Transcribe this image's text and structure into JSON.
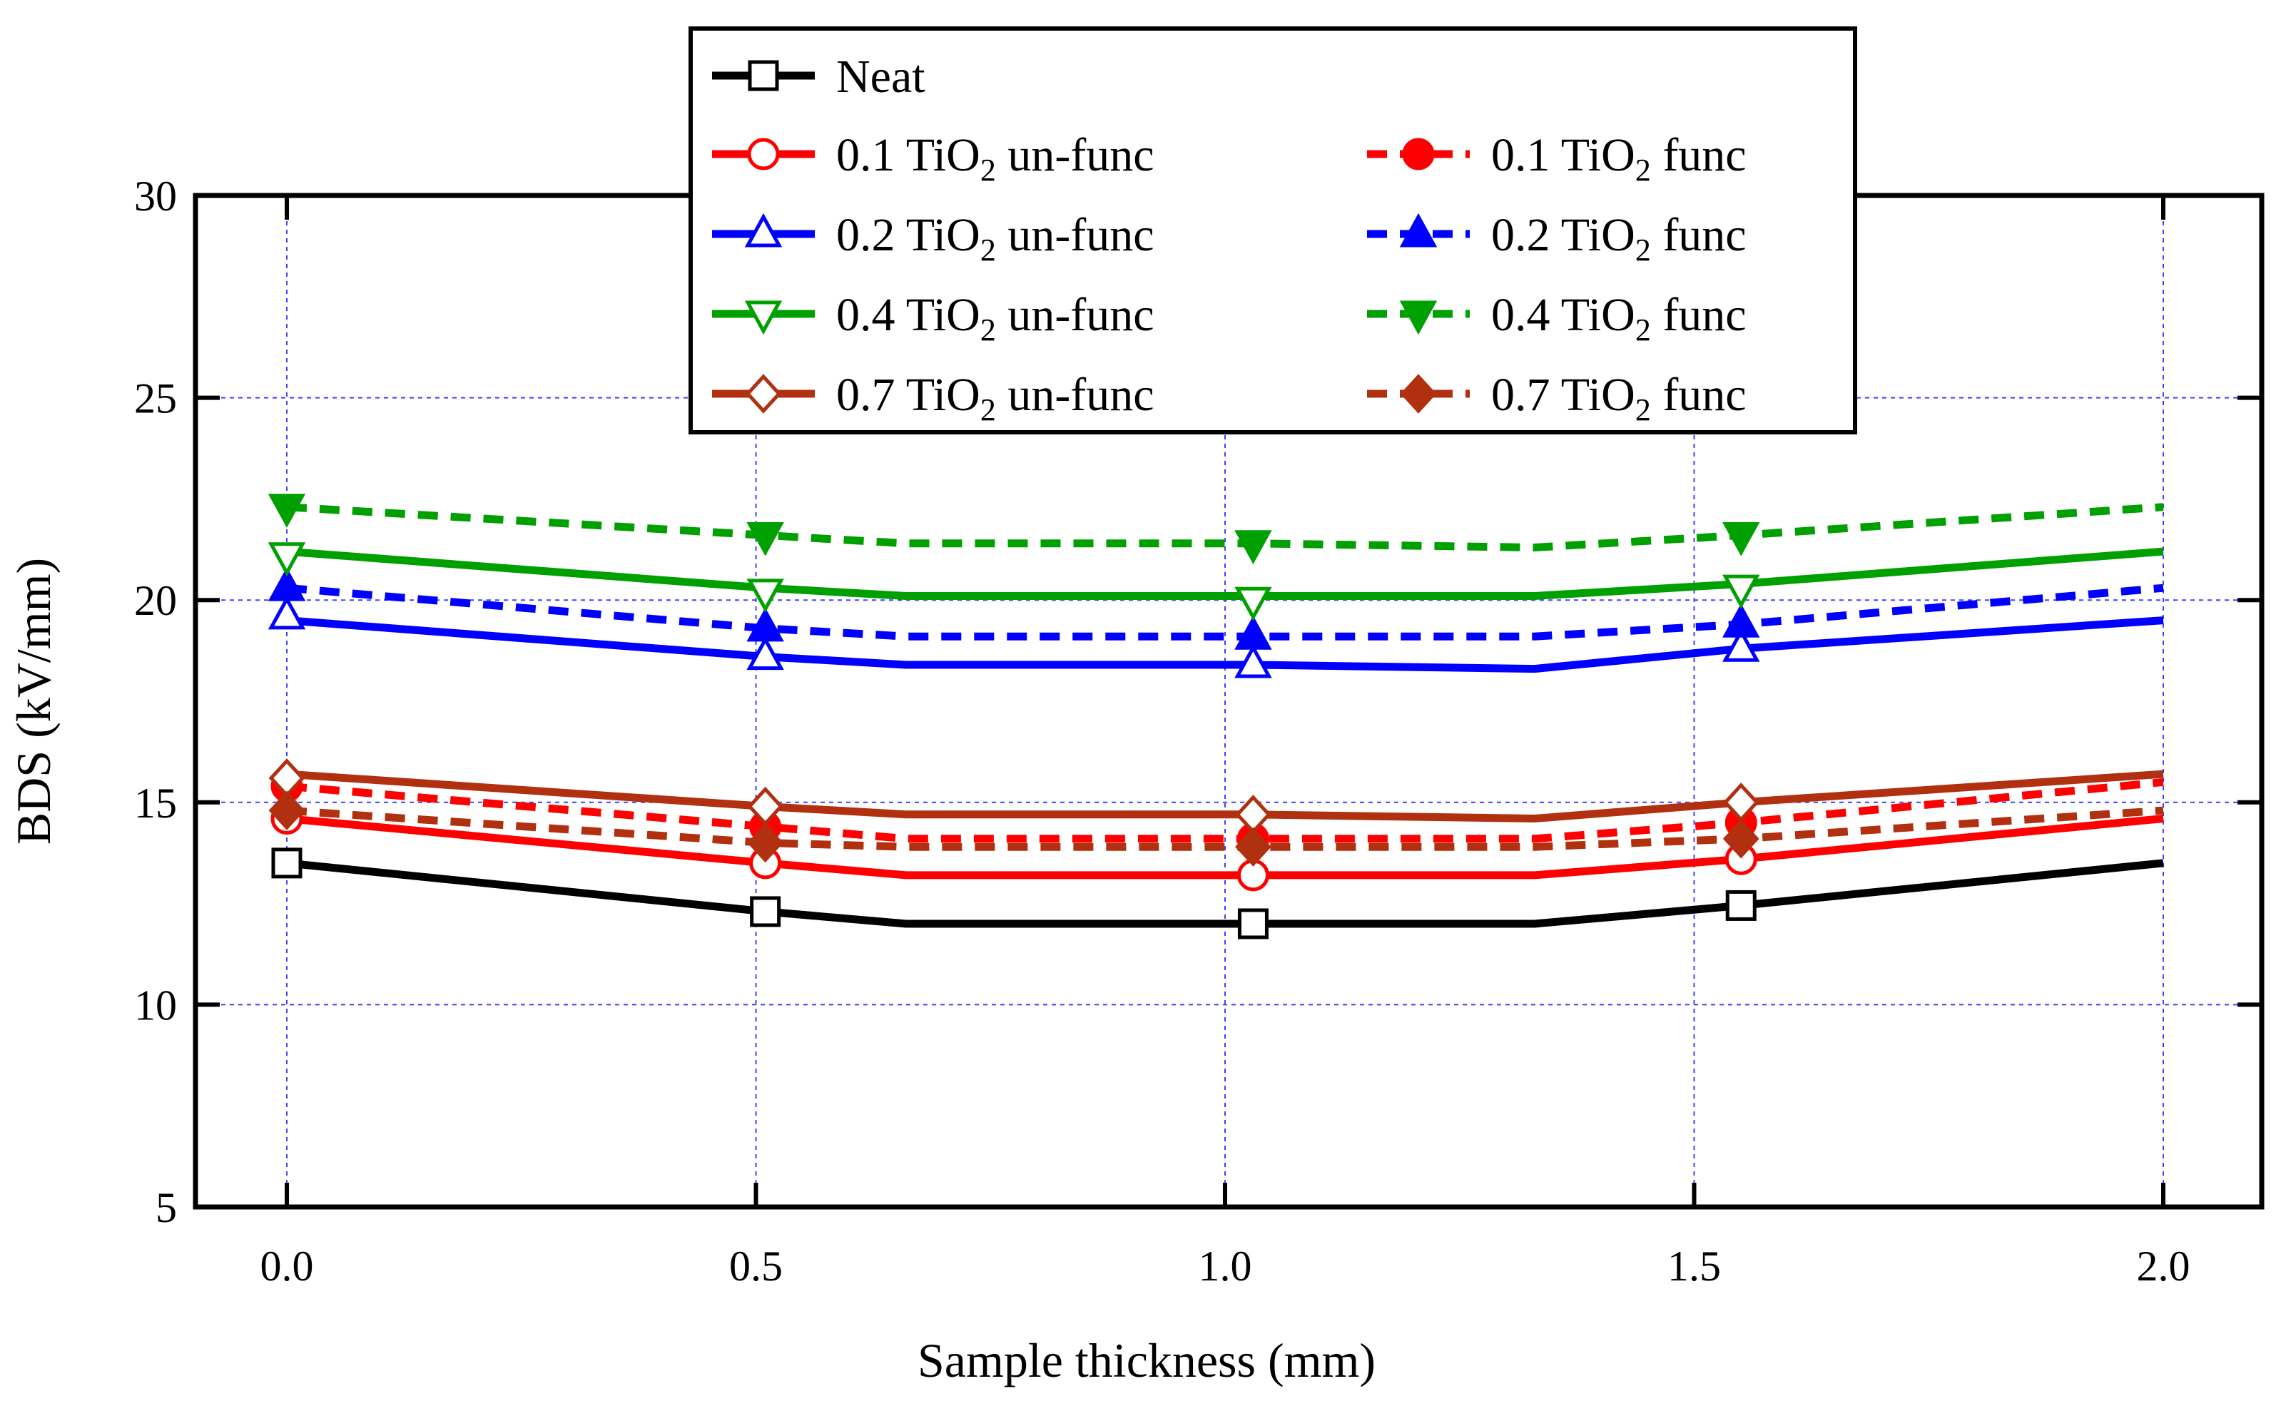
{
  "chart_data": {
    "type": "line",
    "title": "",
    "xlabel": "Sample thickness (mm)",
    "ylabel": "BDS (kV/mm)",
    "xlim": [
      -0.1,
      2.1
    ],
    "ylim": [
      5,
      30
    ],
    "xticks": [
      "0.0",
      "0.5",
      "1.0",
      "1.5",
      "2.0"
    ],
    "yticks": [
      "5",
      "10",
      "15",
      "20",
      "25",
      "30"
    ],
    "grid": true,
    "legend_position": "top-center",
    "markers_x": [
      0.0,
      0.51,
      1.03,
      1.55
    ],
    "series": [
      {
        "name": "Neat",
        "legend_main": "Neat",
        "legend_sub": "",
        "legend_tail": "",
        "color": "#000000",
        "dash": "solid",
        "marker": "square",
        "filled": false,
        "x": [
          0.0,
          0.51,
          0.66,
          1.03,
          1.33,
          1.55,
          2.0
        ],
        "y": [
          13.5,
          12.3,
          12.0,
          12.0,
          12.0,
          12.45,
          13.5
        ],
        "mx": [
          0.0,
          0.51,
          1.03,
          1.55
        ],
        "my": [
          13.5,
          12.3,
          12.0,
          12.45
        ]
      },
      {
        "name": "0.1 TiO2 un-func",
        "legend_main": "0.1 TiO",
        "legend_sub": "2",
        "legend_tail": " un-func",
        "color": "#ff0000",
        "dash": "solid",
        "marker": "circle",
        "filled": false,
        "x": [
          0.0,
          0.51,
          0.66,
          1.03,
          1.33,
          1.55,
          2.0
        ],
        "y": [
          14.6,
          13.5,
          13.2,
          13.2,
          13.2,
          13.6,
          14.6
        ],
        "mx": [
          0.0,
          0.51,
          1.03,
          1.55
        ],
        "my": [
          14.6,
          13.5,
          13.2,
          13.6
        ]
      },
      {
        "name": "0.1 TiO2 func",
        "legend_main": "0.1 TiO",
        "legend_sub": "2",
        "legend_tail": " func",
        "color": "#ff0000",
        "dash": "dashed",
        "marker": "circle",
        "filled": true,
        "x": [
          0.0,
          0.51,
          0.66,
          1.03,
          1.33,
          1.55,
          2.0
        ],
        "y": [
          15.4,
          14.4,
          14.1,
          14.1,
          14.1,
          14.5,
          15.5
        ],
        "mx": [
          0.0,
          0.51,
          1.03,
          1.55
        ],
        "my": [
          15.4,
          14.4,
          14.1,
          14.5
        ]
      },
      {
        "name": "0.2 TiO2 un-func",
        "legend_main": "0.2 TiO",
        "legend_sub": "2",
        "legend_tail": " un-func",
        "color": "#0000ff",
        "dash": "solid",
        "marker": "triangle-up",
        "filled": false,
        "x": [
          0.0,
          0.51,
          0.66,
          1.03,
          1.33,
          1.55,
          2.0
        ],
        "y": [
          19.5,
          18.6,
          18.4,
          18.4,
          18.3,
          18.8,
          19.5
        ],
        "mx": [
          0.0,
          0.51,
          1.03,
          1.55
        ],
        "my": [
          19.6,
          18.6,
          18.4,
          18.8
        ]
      },
      {
        "name": "0.2 TiO2 func",
        "legend_main": "0.2 TiO",
        "legend_sub": "2",
        "legend_tail": " func",
        "color": "#0000ff",
        "dash": "dashed",
        "marker": "triangle-up",
        "filled": true,
        "x": [
          0.0,
          0.51,
          0.66,
          1.03,
          1.33,
          1.55,
          2.0
        ],
        "y": [
          20.3,
          19.3,
          19.1,
          19.1,
          19.1,
          19.4,
          20.3
        ],
        "mx": [
          0.0,
          0.51,
          1.03,
          1.55
        ],
        "my": [
          20.3,
          19.3,
          19.1,
          19.4
        ]
      },
      {
        "name": "0.4 TiO2 un-func",
        "legend_main": "0.4 TiO",
        "legend_sub": "2",
        "legend_tail": " un-func",
        "color": "#00a000",
        "dash": "solid",
        "marker": "triangle-down",
        "filled": false,
        "x": [
          0.0,
          0.51,
          0.66,
          1.03,
          1.33,
          1.55,
          2.0
        ],
        "y": [
          21.2,
          20.3,
          20.1,
          20.1,
          20.1,
          20.4,
          21.2
        ],
        "mx": [
          0.0,
          0.51,
          1.03,
          1.55
        ],
        "my": [
          21.1,
          20.2,
          20.0,
          20.3
        ]
      },
      {
        "name": "0.4 TiO2 func",
        "legend_main": "0.4 TiO",
        "legend_sub": "2",
        "legend_tail": " func",
        "color": "#00a000",
        "dash": "dashed",
        "marker": "triangle-down",
        "filled": true,
        "x": [
          0.0,
          0.51,
          0.66,
          1.03,
          1.33,
          1.55,
          2.0
        ],
        "y": [
          22.3,
          21.6,
          21.4,
          21.4,
          21.3,
          21.6,
          22.3
        ],
        "mx": [
          0.0,
          0.51,
          1.03,
          1.55
        ],
        "my": [
          22.3,
          21.6,
          21.4,
          21.6
        ]
      },
      {
        "name": "0.7 TiO2 un-func",
        "legend_main": "0.7 TiO",
        "legend_sub": "2",
        "legend_tail": " un-func",
        "color": "#b03010",
        "dash": "solid",
        "marker": "diamond",
        "filled": false,
        "x": [
          0.0,
          0.51,
          0.66,
          1.03,
          1.33,
          1.55,
          2.0
        ],
        "y": [
          15.7,
          14.9,
          14.7,
          14.7,
          14.6,
          15.0,
          15.7
        ],
        "mx": [
          0.0,
          0.51,
          1.03,
          1.55
        ],
        "my": [
          15.6,
          14.9,
          14.7,
          15.0
        ]
      },
      {
        "name": "0.7 TiO2 func",
        "legend_main": "0.7 TiO",
        "legend_sub": "2",
        "legend_tail": " func",
        "color": "#b03010",
        "dash": "dashed",
        "marker": "diamond",
        "filled": true,
        "x": [
          0.0,
          0.51,
          0.66,
          1.03,
          1.33,
          1.55,
          2.0
        ],
        "y": [
          14.8,
          14.0,
          13.9,
          13.9,
          13.9,
          14.1,
          14.8
        ],
        "mx": [
          0.0,
          0.51,
          1.03,
          1.55
        ],
        "my": [
          14.8,
          14.0,
          13.9,
          14.1
        ]
      }
    ],
    "legend_layout": [
      [
        "Neat",
        null
      ],
      [
        "0.1 TiO2 un-func",
        "0.1 TiO2 func"
      ],
      [
        "0.2 TiO2 un-func",
        "0.2 TiO2 func"
      ],
      [
        "0.4 TiO2 un-func",
        "0.4 TiO2 func"
      ],
      [
        "0.7 TiO2 un-func",
        "0.7 TiO2 func"
      ]
    ]
  }
}
